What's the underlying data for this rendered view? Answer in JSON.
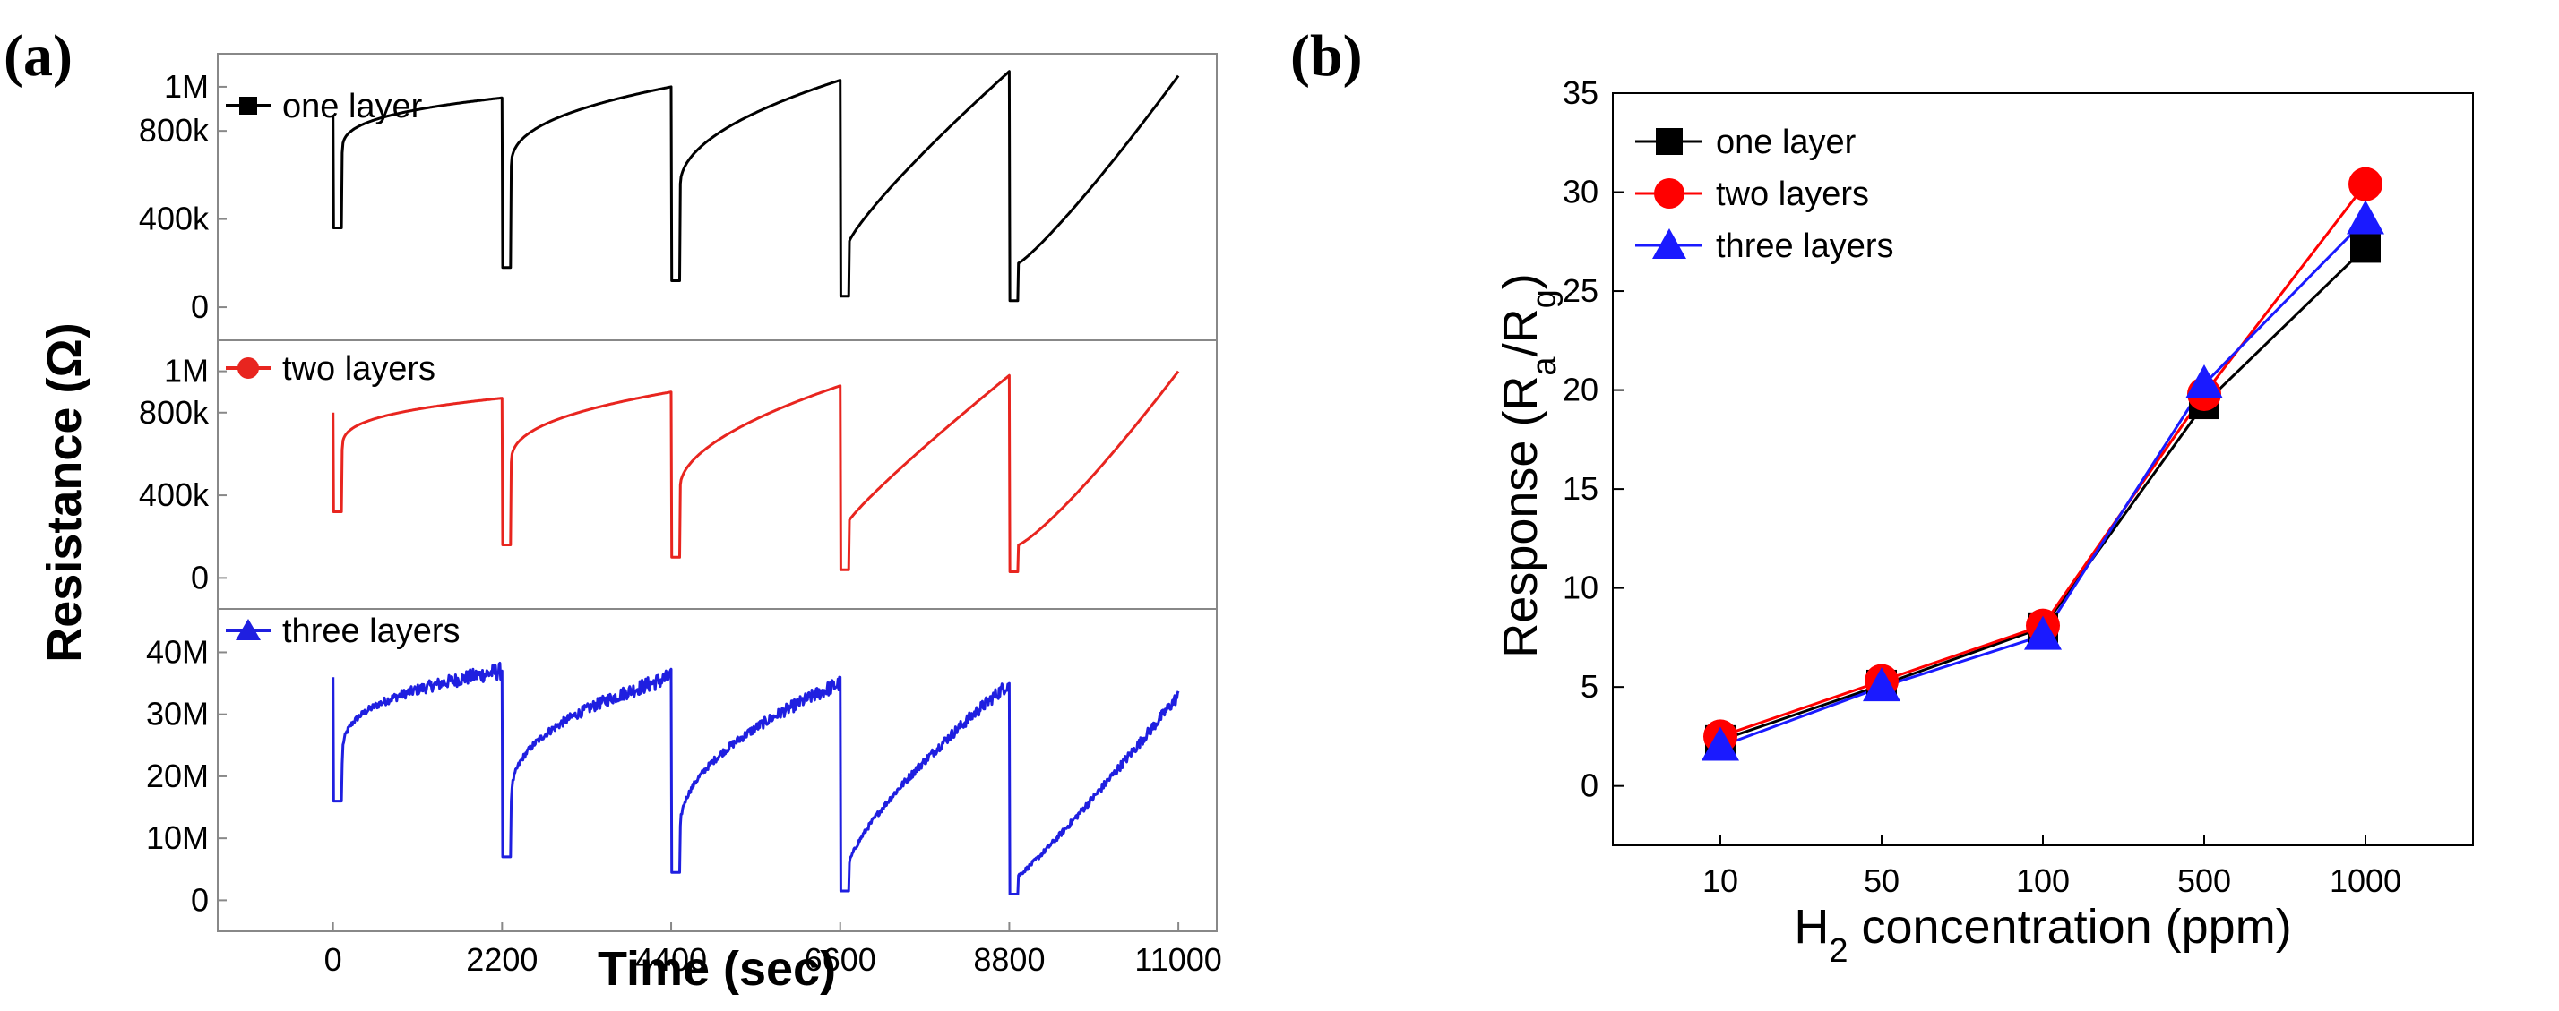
{
  "chart_data": [
    {
      "panel": "(a)",
      "type": "line",
      "xlabel": "Time (sec)",
      "ylabel": "Resistance (Ω)",
      "xlim": [
        -1500,
        11500
      ],
      "x_ticks": [
        0,
        2200,
        4400,
        6600,
        8800,
        11000
      ],
      "x_tick_labels": [
        "0",
        "2200",
        "4400",
        "6600",
        "8800",
        "11000"
      ],
      "subplots": [
        {
          "name": "one layer",
          "color": "#000000",
          "marker": "square",
          "ylim": [
            -150000,
            1150000
          ],
          "y_ticks": [
            0,
            400000,
            800000,
            1000000
          ],
          "y_tick_labels": [
            "0",
            "400k",
            "800k",
            "1M"
          ],
          "cycles": [
            {
              "start": 0,
              "end": 2200,
              "peak": 870000,
              "low": 360000,
              "rec_start": 700000,
              "rec_end": 950000,
              "shape": 0.32,
              "noise": 0
            },
            {
              "start": 2200,
              "end": 4400,
              "peak": 950000,
              "low": 180000,
              "rec_start": 640000,
              "rec_end": 1000000,
              "shape": 0.4,
              "noise": 0
            },
            {
              "start": 4400,
              "end": 6600,
              "peak": 1000000,
              "low": 120000,
              "rec_start": 560000,
              "rec_end": 1030000,
              "shape": 0.5,
              "noise": 0
            },
            {
              "start": 6600,
              "end": 8800,
              "peak": 1030000,
              "low": 50000,
              "rec_start": 300000,
              "rec_end": 1070000,
              "shape": 0.85,
              "noise": 0
            },
            {
              "start": 8800,
              "end": 11000,
              "peak": 1070000,
              "low": 30000,
              "rec_start": 200000,
              "rec_end": 1050000,
              "shape": 1.15,
              "noise": 0
            }
          ]
        },
        {
          "name": "two layers",
          "color": "#e8251f",
          "marker": "circle",
          "ylim": [
            -150000,
            1150000
          ],
          "y_ticks": [
            0,
            400000,
            800000,
            1000000
          ],
          "y_tick_labels": [
            "0",
            "400k",
            "800k",
            "1M"
          ],
          "cycles": [
            {
              "start": 0,
              "end": 2200,
              "peak": 800000,
              "low": 320000,
              "rec_start": 620000,
              "rec_end": 870000,
              "shape": 0.32,
              "noise": 0
            },
            {
              "start": 2200,
              "end": 4400,
              "peak": 870000,
              "low": 160000,
              "rec_start": 560000,
              "rec_end": 900000,
              "shape": 0.4,
              "noise": 0
            },
            {
              "start": 4400,
              "end": 6600,
              "peak": 900000,
              "low": 100000,
              "rec_start": 450000,
              "rec_end": 930000,
              "shape": 0.55,
              "noise": 0
            },
            {
              "start": 6600,
              "end": 8800,
              "peak": 930000,
              "low": 40000,
              "rec_start": 280000,
              "rec_end": 980000,
              "shape": 0.9,
              "noise": 0
            },
            {
              "start": 8800,
              "end": 11000,
              "peak": 980000,
              "low": 30000,
              "rec_start": 160000,
              "rec_end": 1000000,
              "shape": 1.2,
              "noise": 0
            }
          ]
        },
        {
          "name": "three layers",
          "color": "#1f1fe0",
          "marker": "triangle",
          "ylim": [
            -5000000,
            47000000
          ],
          "y_ticks": [
            0,
            10000000,
            20000000,
            30000000,
            40000000
          ],
          "y_tick_labels": [
            "0",
            "10M",
            "20M",
            "30M",
            "40M"
          ],
          "cycles": [
            {
              "start": 0,
              "end": 2200,
              "peak": 36000000,
              "low": 16000000,
              "rec_start": 22000000,
              "rec_end": 37000000,
              "shape": 0.3,
              "noise": 2000000
            },
            {
              "start": 2200,
              "end": 4400,
              "peak": 37000000,
              "low": 7000000,
              "rec_start": 16000000,
              "rec_end": 36000000,
              "shape": 0.4,
              "noise": 2000000
            },
            {
              "start": 4400,
              "end": 6600,
              "peak": 36000000,
              "low": 4500000,
              "rec_start": 12000000,
              "rec_end": 35000000,
              "shape": 0.5,
              "noise": 1800000
            },
            {
              "start": 6600,
              "end": 8800,
              "peak": 36000000,
              "low": 1500000,
              "rec_start": 6000000,
              "rec_end": 35000000,
              "shape": 0.75,
              "noise": 1600000
            },
            {
              "start": 8800,
              "end": 11000,
              "peak": 35000000,
              "low": 1000000,
              "rec_start": 4000000,
              "rec_end": 33000000,
              "shape": 1.1,
              "noise": 1400000
            }
          ]
        }
      ]
    },
    {
      "panel": "(b)",
      "type": "line",
      "xlabel": "H2 concentration (ppm)",
      "ylabel": "Response (Ra/Rg)",
      "categories": [
        "10",
        "50",
        "100",
        "500",
        "1000"
      ],
      "ylim": [
        -3,
        35
      ],
      "y_ticks": [
        0,
        5,
        10,
        15,
        20,
        25,
        30,
        35
      ],
      "y_tick_labels": [
        "0",
        "5",
        "10",
        "15",
        "20",
        "25",
        "30",
        "35"
      ],
      "legend_position": "top-left",
      "series": [
        {
          "name": "one layer",
          "color": "#000000",
          "marker": "square",
          "values": [
            2.3,
            5.1,
            8.0,
            19.3,
            27.2
          ]
        },
        {
          "name": "two layers",
          "color": "#ff0000",
          "marker": "circle",
          "values": [
            2.5,
            5.3,
            8.1,
            19.8,
            30.4
          ]
        },
        {
          "name": "three layers",
          "color": "#1a1aff",
          "marker": "triangle",
          "values": [
            2.0,
            5.0,
            7.6,
            20.3,
            28.6
          ]
        }
      ]
    }
  ]
}
